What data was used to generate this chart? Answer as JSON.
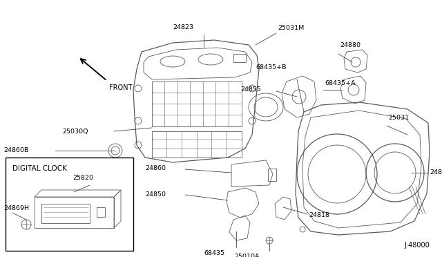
{
  "bg_color": "#ffffff",
  "line_color": "#5a5a5a",
  "diagram_code": "J:48000",
  "digital_clock_label": "DIGITAL CLOCK",
  "front_label": "FRONT"
}
